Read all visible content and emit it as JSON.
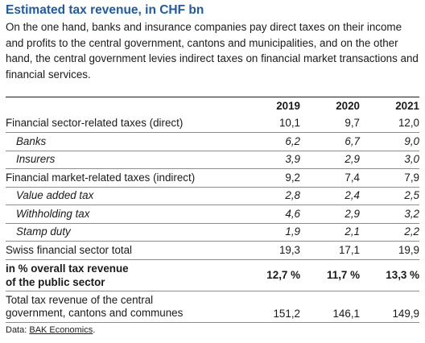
{
  "title": "Estimated tax revenue, in CHF bn",
  "intro": "On the one hand, banks and insurance companies pay direct taxes on their income and profits to the central government, cantons and municipalities, and on the other hand, the central government levies indirect taxes on financial market transactions and financial services.",
  "table": {
    "years": [
      "2019",
      "2020",
      "2021"
    ],
    "rows": [
      {
        "label": "Financial sector-related taxes (direct)",
        "values": [
          "10,1",
          "9,7",
          "12,0"
        ]
      },
      {
        "label": "Banks",
        "values": [
          "6,2",
          "6,7",
          "9,0"
        ]
      },
      {
        "label": "Insurers",
        "values": [
          "3,9",
          "2,9",
          "3,0"
        ]
      },
      {
        "label": "Financial market-related taxes (indirect)",
        "values": [
          "9,2",
          "7,4",
          "7,9"
        ]
      },
      {
        "label": "Value added tax",
        "values": [
          "2,8",
          "2,4",
          "2,5"
        ]
      },
      {
        "label": "Withholding tax",
        "values": [
          "4,6",
          "2,9",
          "3,2"
        ]
      },
      {
        "label": "Stamp duty",
        "values": [
          "1,9",
          "2,1",
          "2,2"
        ]
      },
      {
        "label": "Swiss financial sector total",
        "values": [
          "19,3",
          "17,1",
          "19,9"
        ]
      },
      {
        "label_line1": "in % overall tax revenue",
        "label_line2": "of the public sector",
        "values": [
          "12,7 %",
          "11,7 %",
          "13,3 %"
        ]
      },
      {
        "label_line1": "Total tax revenue of the central",
        "label_line2": "government, cantons and communes",
        "values": [
          "151,2",
          "146,1",
          "149,9"
        ]
      }
    ]
  },
  "source": {
    "prefix": "Data: ",
    "name": "BAK Economics",
    "suffix": "."
  }
}
